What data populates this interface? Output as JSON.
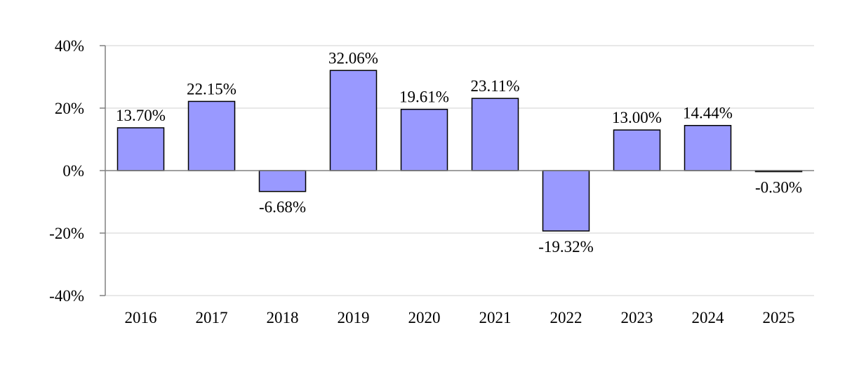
{
  "chart_data": {
    "type": "bar",
    "title": "",
    "xlabel": "",
    "ylabel": "",
    "categories": [
      "2016",
      "2017",
      "2018",
      "2019",
      "2020",
      "2021",
      "2022",
      "2023",
      "2024",
      "2025"
    ],
    "values": [
      13.7,
      22.15,
      -6.68,
      32.06,
      19.61,
      23.11,
      -19.32,
      13.0,
      14.44,
      -0.3
    ],
    "value_labels": [
      "13.70%",
      "22.15%",
      "-6.68%",
      "32.06%",
      "19.61%",
      "23.11%",
      "-19.32%",
      "13.00%",
      "14.44%",
      "-0.30%"
    ],
    "ylim": [
      -40,
      40
    ],
    "yticks": [
      40,
      20,
      0,
      -20,
      -40
    ],
    "ytick_labels": [
      "40%",
      "20%",
      "0%",
      "-20%",
      "-40%"
    ],
    "grid": true,
    "legend": "none",
    "colors": {
      "bar_fill": "#9999ff",
      "bar_stroke": "#000000",
      "grid": "#e0e0e0",
      "axis": "#808080"
    }
  }
}
